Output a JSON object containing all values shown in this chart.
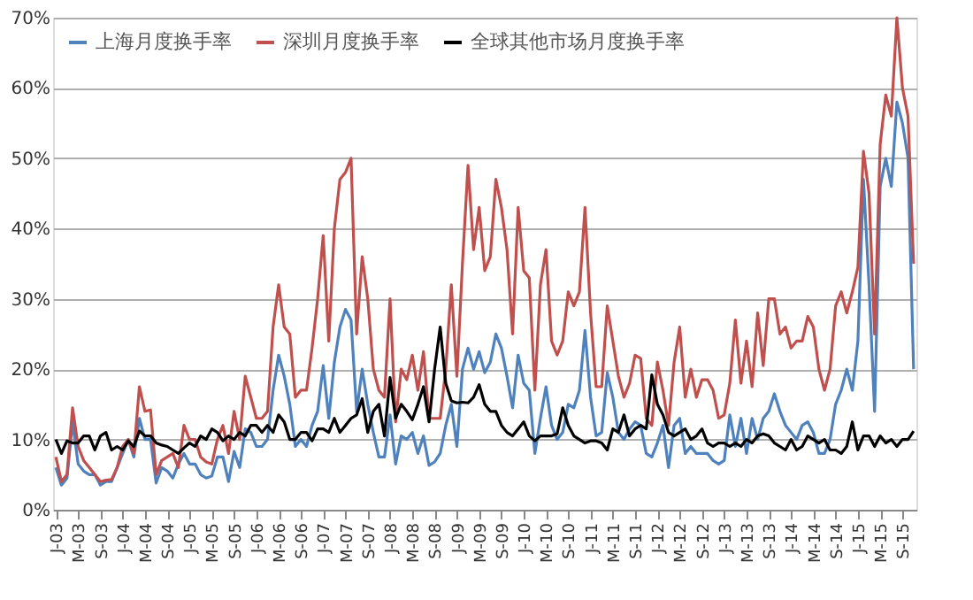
{
  "chart_data": {
    "type": "line",
    "categories": [
      "J-03",
      null,
      null,
      null,
      "M-03",
      null,
      null,
      null,
      "S-03",
      null,
      null,
      null,
      "J-04",
      null,
      null,
      null,
      "M-04",
      null,
      null,
      null,
      "S-04",
      null,
      null,
      null,
      "J-05",
      null,
      null,
      null,
      "M-05",
      null,
      null,
      null,
      "S-05",
      null,
      null,
      null,
      "J-06",
      null,
      null,
      null,
      "M-06",
      null,
      null,
      null,
      "S-06",
      null,
      null,
      null,
      "J-07",
      null,
      null,
      null,
      "M-07",
      null,
      null,
      null,
      "S-07",
      null,
      null,
      null,
      "J-08",
      null,
      null,
      null,
      "M-08",
      null,
      null,
      null,
      "S-08",
      null,
      null,
      null,
      "J-09",
      null,
      null,
      null,
      "M-09",
      null,
      null,
      null,
      "S-09",
      null,
      null,
      null,
      "J-10",
      null,
      null,
      null,
      "M-10",
      null,
      null,
      null,
      "S-10",
      null,
      null,
      null,
      "J-11",
      null,
      null,
      null,
      "M-11",
      null,
      null,
      null,
      "S-11",
      null,
      null,
      null,
      "J-12",
      null,
      null,
      null,
      "M-12",
      null,
      null,
      null,
      "S-12",
      null,
      null,
      null,
      "J-13",
      null,
      null,
      null,
      "M-13",
      null,
      null,
      null,
      "S-13",
      null,
      null,
      null,
      "J-14",
      null,
      null,
      null,
      "M-14",
      null,
      null,
      null,
      "S-14",
      null,
      null,
      null,
      "J-15",
      null,
      null,
      null,
      "M-15",
      null,
      null,
      null,
      "S-15",
      null,
      null
    ],
    "series": [
      {
        "name": "上海月度换手率",
        "color": "#4f81bd",
        "values": [
          6,
          3.5,
          4.5,
          12.5,
          6.5,
          5.5,
          5,
          5,
          3.5,
          4,
          4,
          6,
          8,
          10,
          7.5,
          13,
          10,
          10,
          3.8,
          6,
          5.5,
          4.5,
          6.5,
          8,
          6.5,
          6.5,
          5,
          4.5,
          4.8,
          7.5,
          7.5,
          4,
          8.3,
          6,
          11.5,
          11,
          9,
          9,
          10,
          17,
          22,
          19,
          15,
          9,
          10,
          9,
          12,
          14,
          20.5,
          13,
          21,
          26,
          28.5,
          27,
          14,
          20,
          15,
          11,
          7.5,
          7.5,
          13.5,
          6.5,
          10.5,
          10,
          11,
          8,
          10.5,
          6.3,
          6.8,
          8,
          12,
          15,
          9,
          20,
          23,
          20,
          22.5,
          19.5,
          21,
          25,
          23,
          19,
          14.5,
          22,
          18,
          17,
          8,
          13,
          17.5,
          12,
          10,
          11,
          15,
          14.5,
          17,
          25.5,
          16,
          10.5,
          11,
          19.5,
          16,
          11,
          10,
          11.5,
          12.5,
          12,
          8,
          7.5,
          9.5,
          12,
          6,
          12,
          13,
          8,
          9,
          8,
          8,
          8,
          7,
          6.5,
          7,
          13.5,
          9,
          13,
          8,
          13,
          10,
          13,
          14,
          16.5,
          14,
          12,
          11,
          10,
          12,
          12.5,
          11,
          8,
          8,
          10,
          15,
          17,
          20,
          17,
          24,
          47,
          32,
          14,
          46,
          50,
          46,
          58,
          55,
          50,
          20
        ]
      },
      {
        "name": "深圳月度换手率",
        "color": "#c0504d",
        "values": [
          7.5,
          4,
          5,
          14.5,
          9,
          7,
          6,
          5,
          4,
          4.2,
          4.3,
          6,
          9,
          10,
          8,
          17.5,
          14,
          14.2,
          5,
          7,
          7.5,
          8,
          6,
          12,
          10,
          10,
          7.5,
          6.8,
          6.5,
          10,
          12,
          8,
          14,
          10,
          19,
          16,
          13,
          13,
          14,
          26,
          32,
          26,
          25,
          16,
          17,
          17,
          23,
          30,
          39,
          24,
          40,
          47,
          48,
          50,
          25,
          36,
          30,
          20,
          17,
          16,
          30,
          12.5,
          20,
          18.5,
          22,
          17,
          22.5,
          13,
          13,
          13,
          20,
          32,
          19,
          35,
          49,
          37,
          43,
          34,
          36,
          47,
          43,
          37,
          25,
          43,
          34,
          33,
          17,
          32,
          37,
          24,
          22,
          24,
          31,
          29,
          31,
          43,
          28,
          17.5,
          17.5,
          29,
          24,
          19,
          16,
          18,
          22,
          21.5,
          13,
          12,
          21,
          17,
          12,
          21,
          26,
          16,
          20,
          16,
          18.5,
          18.5,
          17,
          13,
          13.5,
          18,
          27,
          18,
          24,
          17.5,
          28,
          20.5,
          30,
          30,
          25,
          26,
          23,
          24,
          24,
          27.5,
          26,
          20,
          17,
          20,
          29,
          31,
          28,
          31,
          34.5,
          51,
          45,
          25,
          52,
          59,
          56,
          70,
          60,
          56,
          35
        ]
      },
      {
        "name": "全球其他市场月度换手率",
        "color": "#000000",
        "values": [
          10,
          8,
          9.8,
          9.5,
          9.5,
          10.5,
          10.5,
          8.5,
          10.5,
          11,
          8.5,
          9,
          8.5,
          9.8,
          9,
          11.2,
          10.5,
          10.5,
          9.5,
          9.2,
          9,
          8.5,
          8,
          8.8,
          9.5,
          9,
          10.5,
          10,
          11.5,
          11,
          9.8,
          10.5,
          10,
          11,
          10.5,
          12,
          12,
          11,
          12,
          11,
          13.5,
          12.5,
          10,
          10,
          11,
          11,
          9.8,
          11.5,
          11.5,
          11,
          13,
          11,
          12,
          13,
          13.5,
          15.8,
          11,
          14,
          15,
          10.5,
          18.8,
          13,
          15,
          14,
          12.8,
          15,
          17.5,
          12.5,
          20,
          26,
          18,
          15.5,
          15.2,
          15.3,
          15.2,
          16,
          17.8,
          15,
          14,
          14,
          12,
          11,
          10.5,
          11.5,
          12.5,
          10.5,
          9.8,
          10.5,
          10.5,
          10.5,
          10.8,
          14.5,
          12,
          10.5,
          10,
          9.5,
          9.8,
          9.8,
          9.5,
          8.5,
          11.5,
          11,
          13.5,
          10.5,
          11.5,
          12,
          11.5,
          19.2,
          15,
          13.5,
          11,
          10.5,
          11,
          11.5,
          10,
          10.5,
          11.5,
          9.5,
          9,
          9.5,
          9.5,
          9,
          9.5,
          9,
          10,
          9.5,
          10.5,
          10.8,
          10.5,
          9.5,
          9,
          8.5,
          10,
          8.5,
          9,
          10.5,
          10,
          9.5,
          10,
          8.5,
          8.5,
          8,
          9,
          12.5,
          8.5,
          10.5,
          10.5,
          9,
          10.5,
          9.5,
          10,
          9,
          10,
          10,
          11.2
        ]
      }
    ],
    "ylim": [
      0,
      70
    ],
    "yticks": [
      {
        "value": 0,
        "label": "0%"
      },
      {
        "value": 10,
        "label": "10%"
      },
      {
        "value": 20,
        "label": "20%"
      },
      {
        "value": 30,
        "label": "30%"
      },
      {
        "value": 40,
        "label": "40%"
      },
      {
        "value": 50,
        "label": "50%"
      },
      {
        "value": 60,
        "label": "60%"
      },
      {
        "value": 70,
        "label": "70%"
      }
    ],
    "grid": "y",
    "legend": "top left",
    "marker": "none",
    "line_style": "solid"
  }
}
